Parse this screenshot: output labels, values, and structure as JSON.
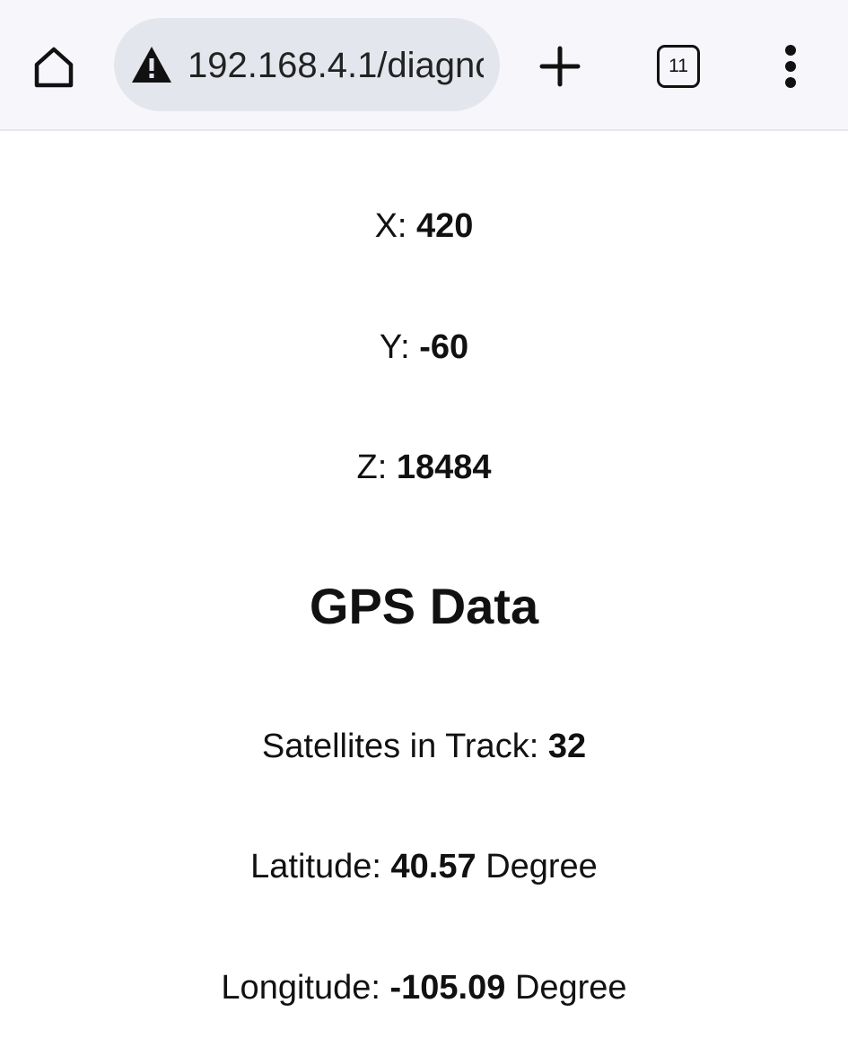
{
  "browser": {
    "url": "192.168.4.1/diagnc",
    "tab_count": "11",
    "icons": {
      "home": "home-icon",
      "warning": "warning-icon",
      "new_tab": "plus-icon",
      "tabs": "tabs-icon",
      "menu": "more-vert-icon"
    }
  },
  "accel": {
    "x_label": "X:",
    "x_value": "420",
    "y_label": "Y:",
    "y_value": "-60",
    "z_label": "Z:",
    "z_value": "18484"
  },
  "gps": {
    "heading": "GPS Data",
    "satellites_label": "Satellites in Track:",
    "satellites_value": "32",
    "latitude_label": "Latitude:",
    "latitude_value": "40.57",
    "latitude_unit": "Degree",
    "longitude_label": "Longitude:",
    "longitude_value": "-105.09",
    "longitude_unit": "Degree"
  }
}
